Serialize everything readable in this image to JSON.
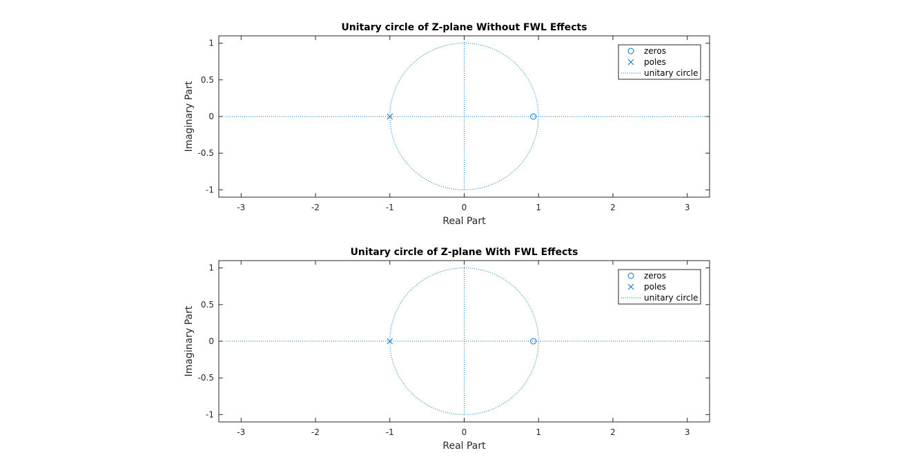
{
  "colors": {
    "series": "#0072bd",
    "axes": "#262626"
  },
  "chart_data": [
    {
      "type": "scatter",
      "title": "Unitary circle of Z-plane Without FWL Effects",
      "xlabel": "Real Part",
      "ylabel": "Imaginary Part",
      "xlim": [
        -3.3,
        3.3
      ],
      "ylim": [
        -1.1,
        1.1
      ],
      "xticks": [
        -3,
        -2,
        -1,
        0,
        1,
        2,
        3
      ],
      "yticks": [
        -1,
        -0.5,
        0,
        0.5,
        1
      ],
      "xtick_labels": [
        "-3",
        "-2",
        "-1",
        "0",
        "1",
        "2",
        "3"
      ],
      "ytick_labels": [
        "-1",
        "-0.5",
        "0",
        "0.5",
        "1"
      ],
      "grid": false,
      "legend_position": "top-right",
      "series": [
        {
          "name": "zeros",
          "marker": "circle",
          "points": [
            [
              0.93,
              0
            ]
          ]
        },
        {
          "name": "poles",
          "marker": "x",
          "points": [
            [
              -1,
              0
            ]
          ]
        },
        {
          "name": "unitary circle",
          "line": "dotted",
          "circle_radius": 1
        }
      ]
    },
    {
      "type": "scatter",
      "title": "Unitary circle of Z-plane With FWL Effects",
      "xlabel": "Real Part",
      "ylabel": "Imaginary Part",
      "xlim": [
        -3.3,
        3.3
      ],
      "ylim": [
        -1.1,
        1.1
      ],
      "xticks": [
        -3,
        -2,
        -1,
        0,
        1,
        2,
        3
      ],
      "yticks": [
        -1,
        -0.5,
        0,
        0.5,
        1
      ],
      "xtick_labels": [
        "-3",
        "-2",
        "-1",
        "0",
        "1",
        "2",
        "3"
      ],
      "ytick_labels": [
        "-1",
        "-0.5",
        "0",
        "0.5",
        "1"
      ],
      "grid": false,
      "legend_position": "top-right",
      "series": [
        {
          "name": "zeros",
          "marker": "circle",
          "points": [
            [
              0.93,
              0
            ]
          ]
        },
        {
          "name": "poles",
          "marker": "x",
          "points": [
            [
              -1,
              0
            ]
          ]
        },
        {
          "name": "unitary circle",
          "line": "dotted",
          "circle_radius": 1
        }
      ]
    }
  ]
}
